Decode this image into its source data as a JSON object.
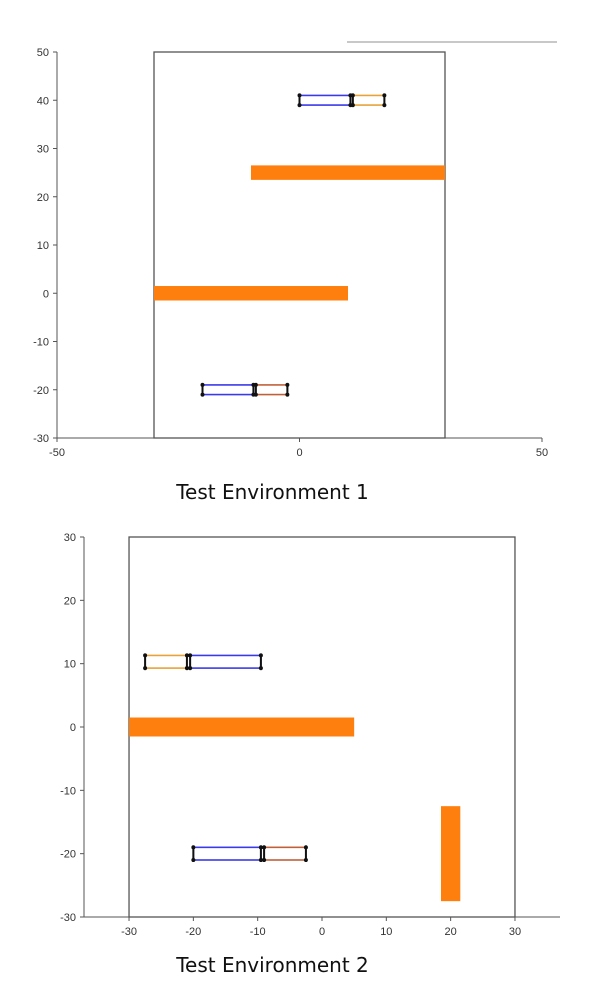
{
  "captions": [
    "Test Environment 1",
    "Test Environment 2"
  ],
  "colors": {
    "obstacle": "#ff7f0e",
    "vehicle_body": "#3a3ae8",
    "trailer": "#e8a23a",
    "trailer_env1_lower": "#c0603a",
    "joint": "#111111",
    "axis": "#555555",
    "boundary": "#555555"
  },
  "chart_data": [
    {
      "type": "scatter",
      "title": "Test Environment 1",
      "xlabel": "",
      "ylabel": "",
      "xlim": [
        -50,
        50
      ],
      "ylim": [
        -30,
        50
      ],
      "xticks": [
        -50,
        0,
        50
      ],
      "yticks": [
        -30,
        -20,
        -10,
        0,
        10,
        20,
        30,
        40,
        50
      ],
      "grid": false,
      "boundary": {
        "x": [
          -30,
          30
        ],
        "y": [
          -30,
          50
        ]
      },
      "obstacles": [
        {
          "x": [
            -10,
            30
          ],
          "y": [
            23.5,
            26.5
          ]
        },
        {
          "x": [
            -30,
            10
          ],
          "y": [
            -1.5,
            1.5
          ]
        }
      ],
      "vehicles": [
        {
          "body": {
            "x": [
              0,
              10.5
            ],
            "y": [
              39,
              41
            ]
          },
          "trailer": {
            "x": [
              11,
              17.5
            ],
            "y": [
              39,
              41
            ]
          },
          "trailer_color_key": "trailer"
        },
        {
          "body": {
            "x": [
              -20,
              -9.5
            ],
            "y": [
              -21,
              -19
            ]
          },
          "trailer": {
            "x": [
              -9,
              -2.5
            ],
            "y": [
              -21,
              -19
            ]
          },
          "trailer_color_key": "trailer_env1_lower"
        }
      ]
    },
    {
      "type": "scatter",
      "title": "Test Environment 2",
      "xlabel": "",
      "ylabel": "",
      "xlim": [
        -37,
        37
      ],
      "ylim": [
        -30,
        30
      ],
      "xticks": [
        -30,
        -20,
        -10,
        0,
        10,
        20,
        30
      ],
      "yticks": [
        -30,
        -20,
        -10,
        0,
        10,
        20,
        30
      ],
      "grid": false,
      "boundary": {
        "x": [
          -30,
          30
        ],
        "y": [
          -30,
          30
        ]
      },
      "obstacles": [
        {
          "x": [
            -30,
            5
          ],
          "y": [
            -1.5,
            1.5
          ]
        },
        {
          "x": [
            18.5,
            21.5
          ],
          "y": [
            -27.5,
            -12.5
          ]
        }
      ],
      "vehicles": [
        {
          "body": {
            "x": [
              -20.5,
              -9.5
            ],
            "y": [
              9.3,
              11.3
            ]
          },
          "trailer": {
            "x": [
              -27.5,
              -21
            ],
            "y": [
              9.3,
              11.3
            ]
          },
          "trailer_color_key": "trailer"
        },
        {
          "body": {
            "x": [
              -20,
              -9.5
            ],
            "y": [
              -21,
              -19
            ]
          },
          "trailer": {
            "x": [
              -9,
              -2.5
            ],
            "y": [
              -21,
              -19
            ]
          },
          "trailer_color_key": "trailer_env1_lower"
        }
      ]
    }
  ]
}
